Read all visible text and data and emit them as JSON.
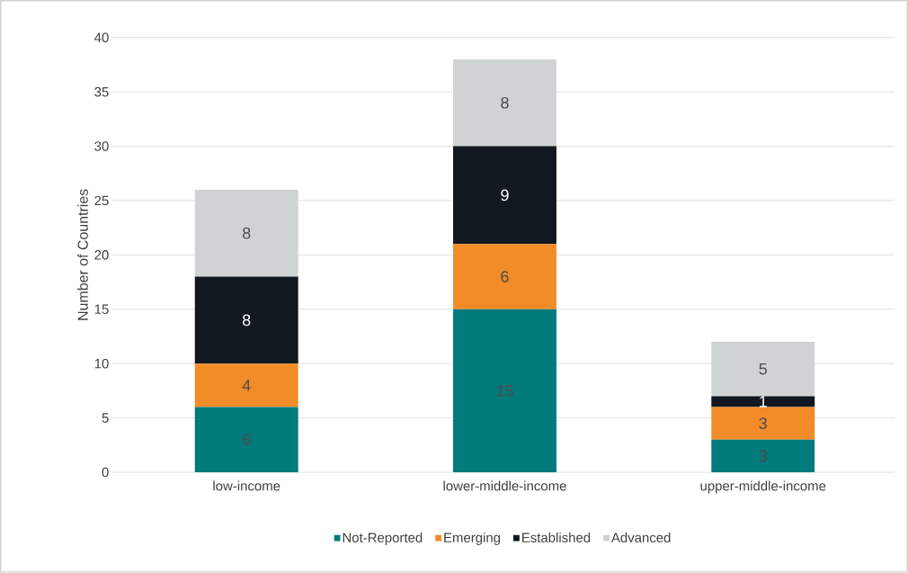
{
  "chart_data": {
    "type": "bar",
    "stacked": true,
    "ylabel": "Number of Countries",
    "categories": [
      "low-income",
      "lower-middle-income",
      "upper-middle-income"
    ],
    "series": [
      {
        "name": "Not-Reported",
        "color": "#007a7a",
        "values": [
          6,
          15,
          3
        ]
      },
      {
        "name": "Emerging",
        "color": "#f28c28",
        "values": [
          4,
          6,
          3
        ]
      },
      {
        "name": "Established",
        "color": "#111820",
        "values": [
          8,
          9,
          1
        ]
      },
      {
        "name": "Advanced",
        "color": "#cfd3d4",
        "values": [
          8,
          8,
          5
        ]
      }
    ],
    "ylim": [
      0,
      40
    ],
    "yticks": [
      0,
      5,
      10,
      15,
      20,
      25,
      30,
      35,
      40
    ],
    "grid": "y",
    "legend": "bottom",
    "data_labels": true
  }
}
